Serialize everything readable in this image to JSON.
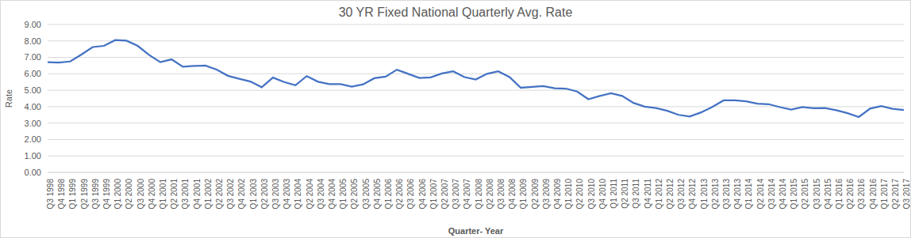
{
  "chart_data": {
    "type": "line",
    "title": "30 YR Fixed National Quarterly Avg. Rate",
    "x_label": "Quarter- Year",
    "y_label": "Rate",
    "categories": [
      "Q3 1998",
      "Q4 1998",
      "Q1 1999",
      "Q2 1999",
      "Q3 1999",
      "Q4 1999",
      "Q1 2000",
      "Q2 2000",
      "Q3 2000",
      "Q4 2000",
      "Q1 2001",
      "Q2 2001",
      "Q3 2001",
      "Q4 2001",
      "Q1 2002",
      "Q2 2002",
      "Q3 2002",
      "Q4 2002",
      "Q1 2003",
      "Q2 2003",
      "Q3 2003",
      "Q4 2003",
      "Q1 2004",
      "Q2 2004",
      "Q3 2004",
      "Q4 2004",
      "Q1 2005",
      "Q2 2005",
      "Q3 2005",
      "Q4 2005",
      "Q1 2006",
      "Q2 2006",
      "Q3 2006",
      "Q4 2006",
      "Q1 2007",
      "Q2 2007",
      "Q3 2007",
      "Q4 2007",
      "Q1 2008",
      "Q2 2008",
      "Q3 2008",
      "Q4 2008",
      "Q1 2009",
      "Q2 2009",
      "Q3 2009",
      "Q4 2009",
      "Q1 2010",
      "Q2 2010",
      "Q3 2010",
      "Q4 2010",
      "Q1 2011",
      "Q2 2011",
      "Q3 2011",
      "Q4 2011",
      "Q1 2012",
      "Q2 2012",
      "Q3 2012",
      "Q4 2012",
      "Q1 2013",
      "Q2 2013",
      "Q3 2013",
      "Q4 2013",
      "Q1 2014",
      "Q2 2014",
      "Q3 2014",
      "Q4 2014",
      "Q1 2015",
      "Q2 2015",
      "Q3 2015",
      "Q4 2015",
      "Q1 2016",
      "Q2 2016",
      "Q3 2016",
      "Q4 2016",
      "Q1 2017",
      "Q2 2017",
      "Q3 2017"
    ],
    "values": [
      6.71,
      6.68,
      6.75,
      7.17,
      7.63,
      7.7,
      8.05,
      8.02,
      7.7,
      7.15,
      6.71,
      6.88,
      6.43,
      6.48,
      6.5,
      6.26,
      5.88,
      5.7,
      5.53,
      5.18,
      5.77,
      5.5,
      5.3,
      5.86,
      5.52,
      5.37,
      5.37,
      5.22,
      5.36,
      5.73,
      5.83,
      6.25,
      6.0,
      5.75,
      5.78,
      6.02,
      6.15,
      5.8,
      5.65,
      6.0,
      6.15,
      5.8,
      5.15,
      5.2,
      5.25,
      5.12,
      5.1,
      4.92,
      4.45,
      4.65,
      4.82,
      4.65,
      4.23,
      4.0,
      3.92,
      3.75,
      3.5,
      3.4,
      3.65,
      3.98,
      4.38,
      4.38,
      4.32,
      4.18,
      4.15,
      3.97,
      3.82,
      3.98,
      3.9,
      3.92,
      3.78,
      3.6,
      3.37,
      3.88,
      4.03,
      3.87,
      3.8
    ],
    "color": "#4472c4",
    "ylim": [
      0,
      9
    ],
    "yticks": [
      {
        "value": 0,
        "label": "0.00"
      },
      {
        "value": 1,
        "label": "1.00"
      },
      {
        "value": 2,
        "label": "2.00"
      },
      {
        "value": 3,
        "label": "3.00"
      },
      {
        "value": 4,
        "label": "4.00"
      },
      {
        "value": 5,
        "label": "5.00"
      },
      {
        "value": 6,
        "label": "6.00"
      },
      {
        "value": 7,
        "label": "7.00"
      },
      {
        "value": 8,
        "label": "8.00"
      },
      {
        "value": 9,
        "label": "9.00"
      }
    ],
    "grid": true
  }
}
